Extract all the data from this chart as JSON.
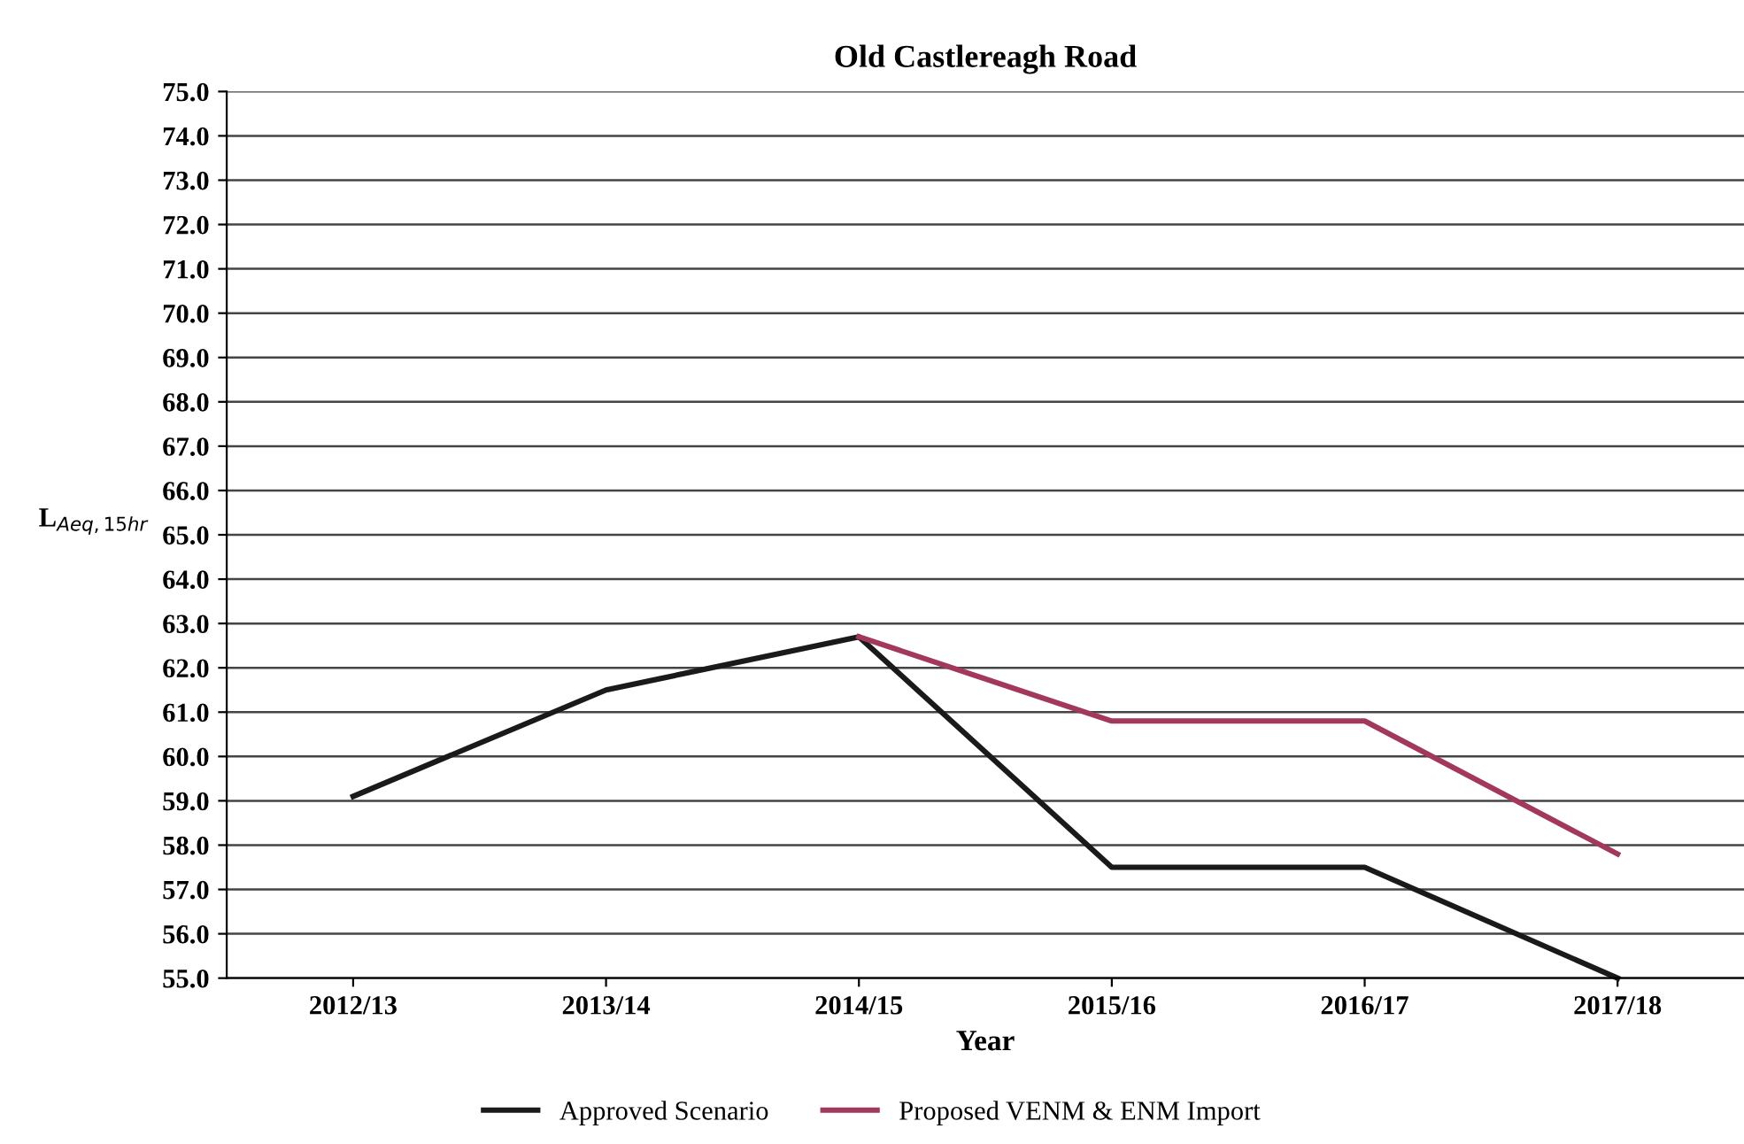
{
  "chart_data": {
    "type": "line",
    "title": "Old Castlereagh Road",
    "xlabel": "Year",
    "ylabel": "L$_{Aeq,15hr}$",
    "categories": [
      "2012/13",
      "2013/14",
      "2014/15",
      "2015/16",
      "2016/17",
      "2017/18"
    ],
    "series": [
      {
        "name": "Approved Scenario",
        "color": "#1a1a1a",
        "values": [
          59.1,
          61.5,
          62.7,
          57.5,
          57.5,
          55.0
        ]
      },
      {
        "name": "Proposed VENM & ENM Import",
        "color": "#a3385e",
        "values": [
          null,
          null,
          62.7,
          60.8,
          60.8,
          57.8
        ]
      }
    ],
    "ylim": [
      55,
      75
    ],
    "yticks": [
      {
        "value": 55,
        "label": "55.0"
      },
      {
        "value": 56,
        "label": "56.0"
      },
      {
        "value": 57,
        "label": "57.0"
      },
      {
        "value": 58,
        "label": "58.0"
      },
      {
        "value": 59,
        "label": "59.0"
      },
      {
        "value": 60,
        "label": "60.0"
      },
      {
        "value": 61,
        "label": "61.0"
      },
      {
        "value": 62,
        "label": "62.0"
      },
      {
        "value": 63,
        "label": "63.0"
      },
      {
        "value": 64,
        "label": "64.0"
      },
      {
        "value": 65,
        "label": "65.0"
      },
      {
        "value": 66,
        "label": "66.0"
      },
      {
        "value": 67,
        "label": "67.0"
      },
      {
        "value": 68,
        "label": "68.0"
      },
      {
        "value": 69,
        "label": "69.0"
      },
      {
        "value": 70,
        "label": "70.0"
      },
      {
        "value": 71,
        "label": "71.0"
      },
      {
        "value": 72,
        "label": "72.0"
      },
      {
        "value": 73,
        "label": "73.0"
      },
      {
        "value": 74,
        "label": "74.0"
      },
      {
        "value": 75,
        "label": "75.0"
      }
    ],
    "grid": "y",
    "legend": "bottom",
    "marker": "none",
    "line_style": "solid"
  }
}
